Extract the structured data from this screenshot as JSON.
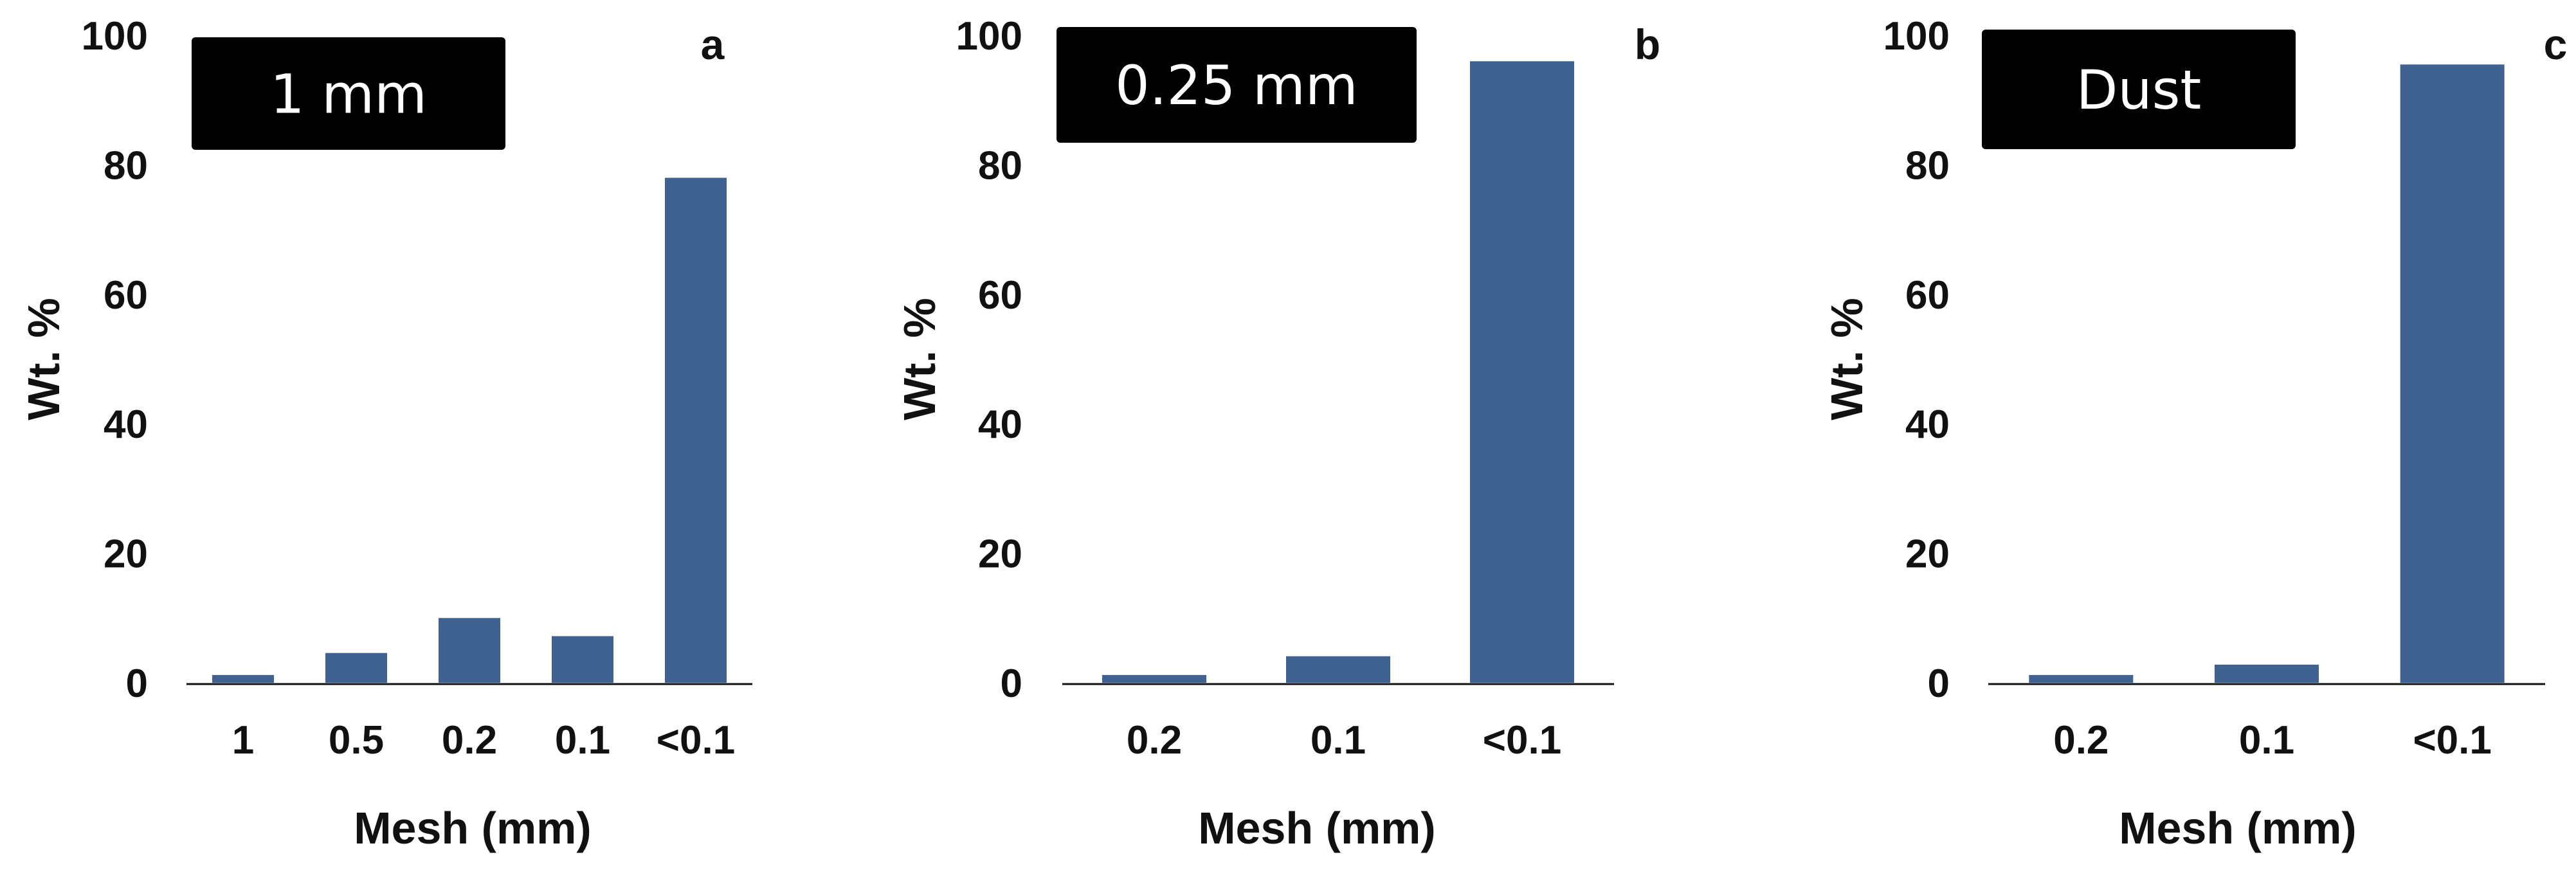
{
  "figure_title": "",
  "chart_data": [
    {
      "type": "bar",
      "panel_label": "a",
      "title": "1 mm",
      "categories": [
        "1",
        "0.5",
        "0.2",
        "0.1",
        "<0.1"
      ],
      "values": [
        1.2,
        4.6,
        10.0,
        7.2,
        78.0
      ],
      "xlabel": "Mesh (mm)",
      "ylabel": "Wt. %",
      "ylim": [
        0,
        100
      ],
      "yticks": [
        0,
        20,
        40,
        60,
        80,
        100
      ],
      "grid": false,
      "bar_color": "#3f6291"
    },
    {
      "type": "bar",
      "panel_label": "b",
      "title": "0.25 mm",
      "categories": [
        "0.2",
        "0.1",
        "<0.1"
      ],
      "values": [
        1.2,
        4.1,
        96.0
      ],
      "xlabel": "Mesh (mm)",
      "ylabel": "Wt. %",
      "ylim": [
        0,
        100
      ],
      "yticks": [
        0,
        20,
        40,
        60,
        80,
        100
      ],
      "grid": false,
      "bar_color": "#3f6291"
    },
    {
      "type": "bar",
      "panel_label": "c",
      "title": "Dust",
      "categories": [
        "0.2",
        "0.1",
        "<0.1"
      ],
      "values": [
        1.2,
        2.8,
        95.5
      ],
      "xlabel": "Mesh (mm)",
      "ylabel": "Wt. %",
      "ylim": [
        0,
        100
      ],
      "yticks": [
        0,
        20,
        40,
        60,
        80,
        100
      ],
      "grid": false,
      "bar_color": "#3f6291"
    }
  ],
  "colors": {
    "bar": "#3f6291",
    "title_box": "#000000",
    "title_text": "#ffffff",
    "axis": "#111111"
  }
}
